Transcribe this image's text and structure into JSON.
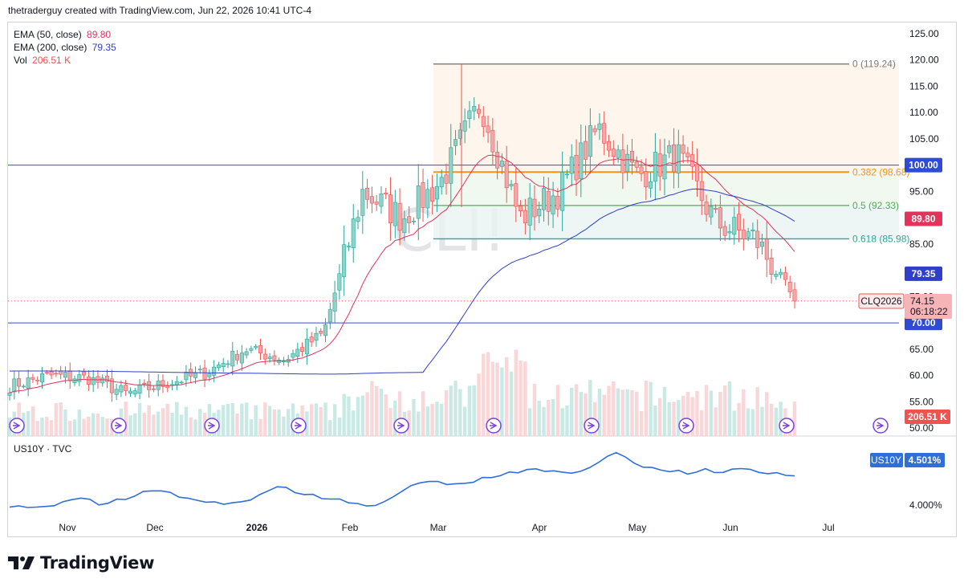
{
  "header": {
    "caption": "thetraderguy created with TradingView.com, Jun 22, 2026 10:41 UTC-4"
  },
  "legend": {
    "ema50_label": "EMA (50, close)",
    "ema50_value": "89.80",
    "ema200_label": "EMA (200, close)",
    "ema200_value": "79.35",
    "vol_label": "Vol",
    "vol_value": "206.51 K"
  },
  "watermark": "CLI!",
  "symbol_tag": {
    "symbol": "CLQ2026",
    "price": "74.15",
    "countdown": "06:18:22"
  },
  "sub_pane": {
    "label": "US10Y · TVC",
    "tag_symbol": "US10Y",
    "tag_value": "4.501%",
    "axis_label": "4.000%"
  },
  "logo_text": "TradingView",
  "colors": {
    "up": "#8fd3c8",
    "up_stroke": "#26a69a",
    "down": "#f2a7aa",
    "down_stroke": "#ef5350",
    "ema50": "#e0345a",
    "ema200": "#2f3fc8",
    "hline": "#2f4bd6",
    "fib0": "#787b86",
    "fib382": "#f7931a",
    "fib50": "#4caf50",
    "fib618": "#22ab94",
    "us10y": "#2f6fd8"
  },
  "chart_data": {
    "type": "candlestick",
    "title": "",
    "y_axis": {
      "ticks": [
        "125.00",
        "120.00",
        "115.00",
        "110.00",
        "105.00",
        "100.00",
        "95.00",
        "90.00",
        "85.00",
        "80.00",
        "75.00",
        "70.00",
        "65.00",
        "60.00",
        "55.00",
        "50.00"
      ],
      "ylim": [
        50,
        125
      ]
    },
    "x_axis": {
      "ticks": [
        "Nov",
        "Dec",
        "2026",
        "Feb",
        "Mar",
        "Apr",
        "May",
        "Jun",
        "Jul"
      ]
    },
    "horizontal_lines": [
      {
        "price": 100.0,
        "label": "100.00"
      },
      {
        "price": 70.0,
        "label": "70.00"
      }
    ],
    "fibonacci": [
      {
        "level": "0",
        "price": 119.24,
        "label": "0 (119.24)"
      },
      {
        "level": "0.382",
        "price": 98.68,
        "label": "0.382 (98.68)"
      },
      {
        "level": "0.5",
        "price": 92.33,
        "label": "0.5 (92.33)"
      },
      {
        "level": "0.618",
        "price": 85.98,
        "label": "0.618 (85.98)"
      }
    ],
    "price_tags": [
      {
        "name": "EMA 50",
        "value": "89.80"
      },
      {
        "name": "EMA 200",
        "value": "79.35"
      },
      {
        "name": "Vol",
        "value": "206.51 K"
      }
    ],
    "ohlc_close_anchors": [
      {
        "x": "Oct start",
        "close": 58.0
      },
      {
        "x": "Nov",
        "close": 60.0
      },
      {
        "x": "Dec",
        "close": 59.5
      },
      {
        "x": "Dec late",
        "close": 56.5
      },
      {
        "x": "2026",
        "close": 58.5
      },
      {
        "x": "Jan mid",
        "close": 60.5
      },
      {
        "x": "Feb",
        "close": 65.0
      },
      {
        "x": "Feb mid",
        "close": 63.0
      },
      {
        "x": "Mar",
        "close": 68.0
      },
      {
        "x": "Mar early",
        "close": 95.0
      },
      {
        "x": "Mar mid",
        "close": 90.0
      },
      {
        "x": "Mar late",
        "close": 97.0
      },
      {
        "x": "Apr",
        "close": 112.0
      },
      {
        "x": "Apr mid",
        "close": 90.0
      },
      {
        "x": "Apr late",
        "close": 95.0
      },
      {
        "x": "May",
        "close": 107.0
      },
      {
        "x": "May mid",
        "close": 98.0
      },
      {
        "x": "May late",
        "close": 102.0
      },
      {
        "x": "Jun",
        "close": 89.0
      },
      {
        "x": "Jun mid",
        "close": 86.0
      },
      {
        "x": "Jun 22",
        "close": 74.15
      }
    ],
    "us10y": {
      "last": 4.501,
      "closes": [
        4.05,
        4.03,
        4.08,
        4.12,
        4.18,
        4.1,
        4.15,
        4.22,
        4.3,
        4.25,
        4.2,
        4.12,
        4.08,
        4.15,
        4.22,
        4.35,
        4.28,
        4.22,
        4.18,
        4.12,
        4.05,
        4.15,
        4.28,
        4.4,
        4.45,
        4.38,
        4.42,
        4.5,
        4.55,
        4.62,
        4.58,
        4.55,
        4.6,
        4.7,
        4.85,
        4.72,
        4.62,
        4.58,
        4.55,
        4.6,
        4.58,
        4.62,
        4.55,
        4.58,
        4.501
      ]
    }
  }
}
